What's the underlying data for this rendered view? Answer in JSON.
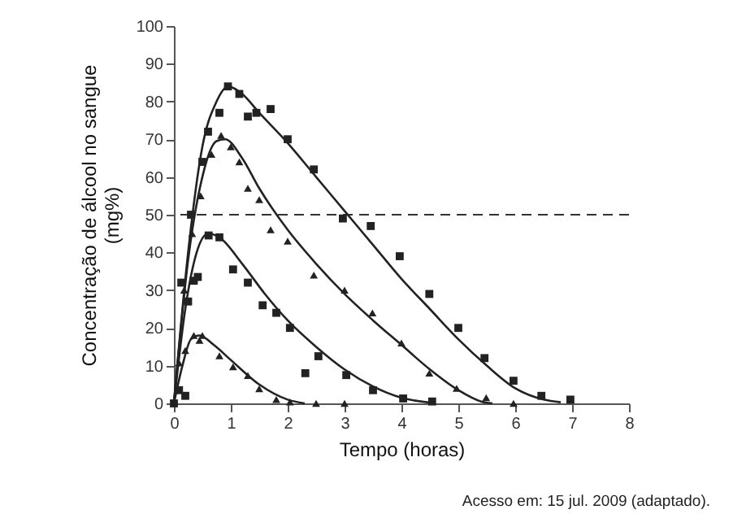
{
  "chart_data": {
    "type": "scatter",
    "xlabel": "Tempo (horas)",
    "ylabel": "Concentração de álcool no sangue\n(mg%)",
    "xlim": [
      0,
      8
    ],
    "xticks": [
      0,
      1,
      2,
      3,
      4,
      5,
      6,
      7,
      8
    ],
    "ylim": [
      0,
      100
    ],
    "yticks": [
      0,
      10,
      20,
      30,
      40,
      50,
      60,
      70,
      80,
      90,
      100
    ],
    "grid": false,
    "ref_lines": [
      {
        "axis": "y",
        "value": 50,
        "line_style": "dashed",
        "color": "#333333"
      }
    ],
    "annotations": [
      "Acesso em: 15 jul. 2009 (adaptado)."
    ],
    "series": [
      {
        "marker": "square",
        "color": "#222222",
        "x": [
          0,
          0.13,
          0.3,
          0.5,
          0.6,
          0.8,
          0.95,
          1.15,
          1.3,
          1.45,
          1.7,
          2.0,
          2.46,
          2.97,
          3.46,
          3.97,
          4.49,
          5.0,
          5.46,
          5.97,
          6.46,
          6.97
        ],
        "values": [
          0,
          32,
          50,
          64,
          72,
          77,
          84,
          82,
          76,
          77,
          78,
          70,
          62,
          49,
          47,
          39,
          29,
          20,
          12,
          6,
          2,
          1
        ]
      },
      {
        "marker": "triangle",
        "color": "#222222",
        "x": [
          0.18,
          0.32,
          0.47,
          0.66,
          0.83,
          1.0,
          1.15,
          1.3,
          1.5,
          1.7,
          2.0,
          2.46,
          3.0,
          3.49,
          4.0,
          4.49,
          4.97,
          5.49,
          5.97
        ],
        "values": [
          30,
          45,
          55,
          66,
          71,
          68,
          64,
          57,
          54,
          46,
          43,
          34,
          30,
          24,
          16,
          8,
          4,
          1.5,
          0
        ]
      },
      {
        "marker": "square",
        "color": "#222222",
        "x": [
          0.09,
          0.2,
          0.25,
          0.35,
          0.42,
          0.61,
          0.8,
          1.04,
          1.3,
          1.56,
          1.8,
          2.04,
          2.31,
          2.54,
          3.03,
          3.5,
          4.03,
          4.54
        ],
        "values": [
          3.5,
          2,
          27,
          32.5,
          33.5,
          44.5,
          44,
          35.5,
          32,
          26,
          24,
          20,
          8,
          12.5,
          7.5,
          3.5,
          1.3,
          0.5
        ]
      },
      {
        "marker": "triangle",
        "color": "#222222",
        "x": [
          0.09,
          0.2,
          0.35,
          0.45,
          0.5,
          0.8,
          1.04,
          1.3,
          1.5,
          1.8,
          2.04,
          2.5,
          3.0
        ],
        "values": [
          10.7,
          14,
          18,
          16.7,
          18,
          12.6,
          9.7,
          7.4,
          3.9,
          1,
          0.4,
          0,
          0
        ]
      },
      {
        "type": "line",
        "color": "#222222",
        "x": [
          0,
          0.25,
          0.5,
          0.75,
          0.95,
          1.2,
          1.5,
          2,
          2.5,
          3,
          3.5,
          4,
          4.5,
          5,
          5.5,
          6,
          6.5,
          6.8
        ],
        "values": [
          0,
          40,
          68,
          80,
          84,
          82,
          77,
          69,
          60,
          51,
          42,
          33,
          25,
          17,
          10,
          4,
          1,
          0.3
        ]
      },
      {
        "type": "line",
        "color": "#222222",
        "x": [
          0,
          0.25,
          0.5,
          0.75,
          0.9,
          1.2,
          1.5,
          2,
          2.5,
          3,
          3.5,
          4,
          4.5,
          5,
          5.4,
          5.6
        ],
        "values": [
          0,
          38,
          60,
          69.5,
          70,
          65,
          57,
          46,
          37,
          29,
          22,
          15.5,
          9,
          3.5,
          0.5,
          0
        ]
      },
      {
        "type": "line",
        "color": "#222222",
        "x": [
          0,
          0.2,
          0.4,
          0.6,
          0.8,
          1.2,
          1.6,
          2,
          2.5,
          3,
          3.5,
          4,
          4.5
        ],
        "values": [
          0,
          25,
          40,
          45,
          44,
          37,
          29,
          22,
          15,
          9,
          4.5,
          1.5,
          0.2
        ]
      },
      {
        "type": "line",
        "color": "#222222",
        "x": [
          0,
          0.15,
          0.3,
          0.45,
          0.7,
          1,
          1.5,
          2,
          2.3
        ],
        "values": [
          0,
          10,
          17,
          18,
          15.5,
          11.5,
          5,
          1,
          0
        ]
      }
    ]
  }
}
